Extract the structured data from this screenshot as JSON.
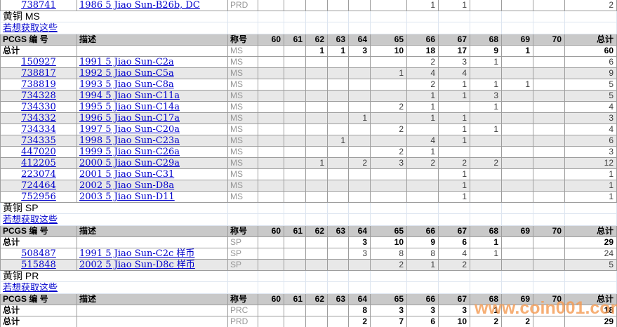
{
  "columns": [
    "PCGS 编 号",
    "描述",
    "称号",
    "60",
    "61",
    "62",
    "63",
    "64",
    "65",
    "66",
    "67",
    "68",
    "69",
    "70",
    "总计"
  ],
  "get_data_link_text": "若想获取这些",
  "total_label": "总计",
  "watermark": {
    "text": "www.coin001.com",
    "color": "#f49a52"
  },
  "colors": {
    "link": "#0000cc",
    "header_bg": "#c9c9c9",
    "alt_row_bg": "#e8e8e8",
    "grid": "#9d9d9d",
    "light_grid": "#dde5f0",
    "designation_text": "#969696"
  },
  "leading_row": {
    "pcgs": "738741",
    "desc": "1986 5 Jiao Sun-B26b, DC",
    "desig": "PRD",
    "grades": [
      "",
      "",
      "",
      "",
      "",
      "",
      "1",
      "1",
      "",
      "",
      ""
    ],
    "total": "2"
  },
  "sections": [
    {
      "title": "黄铜 MS",
      "summary_rows": [
        {
          "label": "总计",
          "desig": "MS",
          "grades": [
            "",
            "",
            "1",
            "1",
            "3",
            "10",
            "18",
            "17",
            "9",
            "1",
            ""
          ],
          "total": "60"
        }
      ],
      "rows": [
        {
          "pcgs": "150927",
          "desc": "1991 5 Jiao Sun-C2a",
          "desig": "MS",
          "grades": [
            "",
            "",
            "",
            "",
            "",
            "",
            "2",
            "3",
            "1",
            "",
            ""
          ],
          "total": "6"
        },
        {
          "pcgs": "738817",
          "desc": "1992 5 Jiao Sun-C5a",
          "desig": "MS",
          "grades": [
            "",
            "",
            "",
            "",
            "",
            "1",
            "4",
            "4",
            "",
            "",
            ""
          ],
          "total": "9"
        },
        {
          "pcgs": "738819",
          "desc": "1993 5 Jiao Sun-C8a",
          "desig": "MS",
          "grades": [
            "",
            "",
            "",
            "",
            "",
            "",
            "2",
            "1",
            "1",
            "1",
            ""
          ],
          "total": "5"
        },
        {
          "pcgs": "734328",
          "desc": "1994 5 Jiao Sun-C11a",
          "desig": "MS",
          "grades": [
            "",
            "",
            "",
            "",
            "",
            "",
            "1",
            "1",
            "3",
            "",
            ""
          ],
          "total": "5"
        },
        {
          "pcgs": "734330",
          "desc": "1995 5 Jiao Sun-C14a",
          "desig": "MS",
          "grades": [
            "",
            "",
            "",
            "",
            "",
            "2",
            "1",
            "",
            "1",
            "",
            ""
          ],
          "total": "4"
        },
        {
          "pcgs": "734332",
          "desc": "1996 5 Jiao Sun-C17a",
          "desig": "MS",
          "grades": [
            "",
            "",
            "",
            "",
            "1",
            "",
            "1",
            "1",
            "",
            "",
            ""
          ],
          "total": "3"
        },
        {
          "pcgs": "734334",
          "desc": "1997 5 Jiao Sun-C20a",
          "desig": "MS",
          "grades": [
            "",
            "",
            "",
            "",
            "",
            "2",
            "",
            "1",
            "1",
            "",
            ""
          ],
          "total": "4"
        },
        {
          "pcgs": "734335",
          "desc": "1998 5 Jiao Sun-C23a",
          "desig": "MS",
          "grades": [
            "",
            "",
            "",
            "1",
            "",
            "",
            "4",
            "1",
            "",
            "",
            ""
          ],
          "total": "6"
        },
        {
          "pcgs": "447020",
          "desc": "1999 5 Jiao Sun-C26a",
          "desig": "MS",
          "grades": [
            "",
            "",
            "",
            "",
            "",
            "2",
            "1",
            "",
            "",
            "",
            ""
          ],
          "total": "3"
        },
        {
          "pcgs": "412205",
          "desc": "2000 5 Jiao Sun-C29a",
          "desig": "MS",
          "grades": [
            "",
            "",
            "1",
            "",
            "2",
            "3",
            "2",
            "2",
            "2",
            "",
            ""
          ],
          "total": "12"
        },
        {
          "pcgs": "223074",
          "desc": "2001 5 Jiao Sun-C31",
          "desig": "MS",
          "grades": [
            "",
            "",
            "",
            "",
            "",
            "",
            "",
            "1",
            "",
            "",
            ""
          ],
          "total": "1"
        },
        {
          "pcgs": "724464",
          "desc": "2002 5 Jiao Sun-D8a",
          "desig": "MS",
          "grades": [
            "",
            "",
            "",
            "",
            "",
            "",
            "",
            "1",
            "",
            "",
            ""
          ],
          "total": "1"
        },
        {
          "pcgs": "752956",
          "desc": "2003 5 Jiao Sun-D11",
          "desig": "MS",
          "grades": [
            "",
            "",
            "",
            "",
            "",
            "",
            "",
            "1",
            "",
            "",
            ""
          ],
          "total": "1"
        }
      ]
    },
    {
      "title": "黄铜 SP",
      "summary_rows": [
        {
          "label": "总计",
          "desig": "SP",
          "grades": [
            "",
            "",
            "",
            "",
            "3",
            "10",
            "9",
            "6",
            "1",
            "",
            ""
          ],
          "total": "29"
        }
      ],
      "rows": [
        {
          "pcgs": "508487",
          "desc": "1991 5 Jiao Sun-C2c 样币",
          "desig": "SP",
          "grades": [
            "",
            "",
            "",
            "",
            "3",
            "8",
            "8",
            "4",
            "1",
            "",
            ""
          ],
          "total": "24"
        },
        {
          "pcgs": "515848",
          "desc": "2002 5 Jiao Sun-D8c 样币",
          "desig": "SP",
          "grades": [
            "",
            "",
            "",
            "",
            "",
            "2",
            "1",
            "2",
            "",
            "",
            ""
          ],
          "total": "5"
        }
      ]
    },
    {
      "title": "黄铜 PR",
      "summary_rows": [
        {
          "label": "总计",
          "desig": "PRC",
          "grades": [
            "",
            "",
            "",
            "",
            "8",
            "3",
            "3",
            "3",
            "1",
            "",
            ""
          ],
          "total": "18"
        },
        {
          "label": "总计",
          "desig": "PRD",
          "grades": [
            "",
            "",
            "",
            "",
            "2",
            "7",
            "6",
            "10",
            "2",
            "2",
            ""
          ],
          "total": "29"
        }
      ],
      "rows": []
    }
  ]
}
